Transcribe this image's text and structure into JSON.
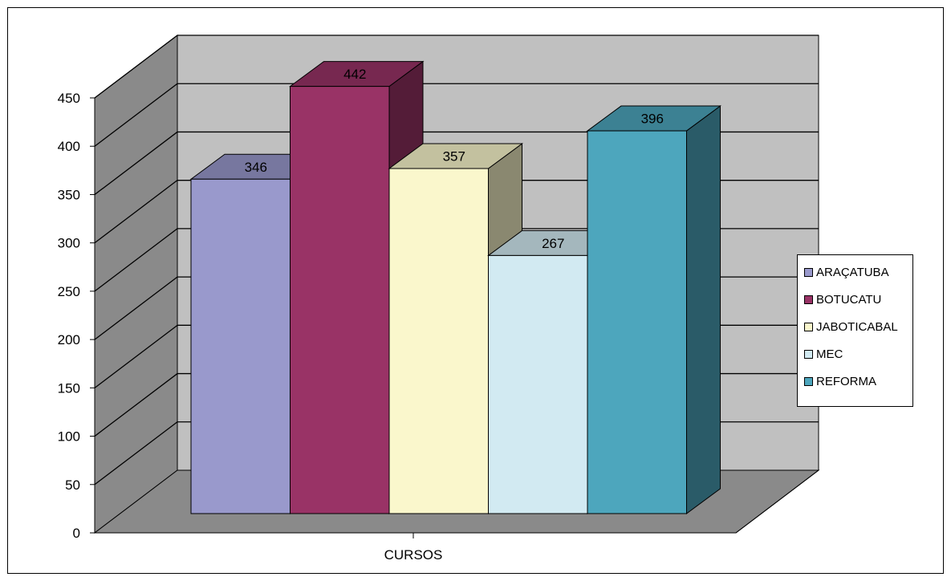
{
  "chart_data": {
    "type": "bar",
    "style": "3d-clustered-column",
    "categories": [
      "CURSOS"
    ],
    "xlabel": "CURSOS",
    "ylim": [
      0,
      450
    ],
    "y_ticks": [
      "0",
      "50",
      "100",
      "150",
      "200",
      "250",
      "300",
      "350",
      "400",
      "450"
    ],
    "grid": true,
    "legend_position": "right",
    "series": [
      {
        "name": "ARAÇATUBA",
        "values": [
          346
        ],
        "color": "#9999cc"
      },
      {
        "name": "BOTUCATU",
        "values": [
          442
        ],
        "color": "#993366"
      },
      {
        "name": "JABOTICABAL",
        "values": [
          357
        ],
        "color": "#faf7cc"
      },
      {
        "name": "MEC",
        "values": [
          267
        ],
        "color": "#d2eaf2"
      },
      {
        "name": "REFORMA",
        "values": [
          396
        ],
        "color": "#4da6bd"
      }
    ],
    "data_labels": [
      "346",
      "442",
      "357",
      "267",
      "396"
    ]
  }
}
